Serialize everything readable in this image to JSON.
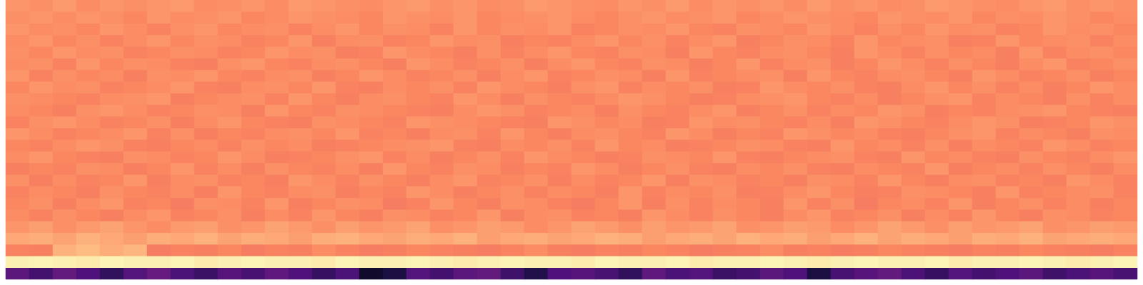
{
  "chart_data": {
    "type": "heatmap",
    "tick_labels": false,
    "zlim": [
      0,
      100
    ],
    "values": [
      [
        28,
        22,
        30,
        25,
        18,
        26,
        31,
        24,
        20,
        27,
        23,
        29,
        25,
        19,
        24,
        8,
        12,
        26,
        22,
        28,
        30,
        21,
        14,
        25,
        27,
        23,
        18,
        29,
        24,
        26,
        20,
        22,
        28,
        25,
        12,
        23,
        27,
        30,
        24,
        19,
        26,
        22,
        25,
        28,
        21,
        24,
        27,
        23
      ],
      [
        97,
        98,
        97,
        96,
        98,
        97,
        97,
        98,
        96,
        97,
        98,
        97,
        97,
        96,
        98,
        97,
        97,
        98,
        97,
        96,
        97,
        98,
        97,
        97,
        96,
        98,
        97,
        97,
        98,
        96,
        97,
        97,
        98,
        97,
        96,
        97,
        98,
        97,
        97,
        98,
        96,
        97,
        97,
        98,
        97,
        96,
        97,
        98
      ],
      [
        74,
        73,
        84,
        86,
        83,
        85,
        72,
        74,
        73,
        75,
        72,
        74,
        73,
        76,
        74,
        72,
        73,
        75,
        74,
        73,
        72,
        74,
        76,
        73,
        72,
        74,
        73,
        75,
        74,
        72,
        73,
        74,
        76,
        73,
        74,
        72,
        73,
        75,
        74,
        73,
        72,
        74,
        73,
        75,
        74,
        73,
        72,
        74
      ],
      [
        82,
        83,
        81,
        84,
        82,
        80,
        83,
        82,
        84,
        81,
        83,
        82,
        80,
        83,
        84,
        82,
        81,
        83,
        82,
        84,
        80,
        82,
        83,
        81,
        82,
        84,
        83,
        80,
        82,
        83,
        81,
        84,
        82,
        83,
        80,
        82,
        84,
        81,
        83,
        82,
        80,
        83,
        82,
        84,
        81,
        82,
        83,
        82
      ],
      [
        78,
        80,
        77,
        79,
        81,
        78,
        76,
        79,
        80,
        77,
        78,
        81,
        79,
        77,
        80,
        78,
        79,
        81,
        77,
        78,
        80,
        79,
        76,
        78,
        81,
        79,
        77,
        80,
        78,
        79,
        81,
        77,
        78,
        80,
        79,
        76,
        78,
        81,
        79,
        77,
        80,
        78,
        79,
        81,
        77,
        78,
        80,
        79
      ],
      [
        76,
        74,
        77,
        75,
        73,
        76,
        78,
        74,
        75,
        77,
        73,
        76,
        74,
        78,
        75,
        73,
        77,
        76,
        74,
        75,
        78,
        73,
        76,
        77,
        74,
        75,
        73,
        78,
        76,
        74,
        77,
        75,
        73,
        76,
        78,
        74,
        75,
        77,
        73,
        76,
        74,
        78,
        75,
        73,
        77,
        76,
        74,
        75
      ],
      [
        75,
        77,
        73,
        76,
        78,
        74,
        75,
        72,
        77,
        76,
        74,
        78,
        73,
        75,
        77,
        76,
        72,
        74,
        78,
        75,
        73,
        77,
        76,
        74,
        72,
        75,
        78,
        73,
        77,
        74,
        76,
        75,
        73,
        78,
        74,
        77,
        72,
        75,
        76,
        74,
        78,
        73,
        75,
        77,
        74,
        76,
        73,
        75
      ],
      [
        74,
        76,
        75,
        73,
        77,
        75,
        74,
        76,
        73,
        78,
        75,
        74,
        76,
        77,
        73,
        75,
        74,
        78,
        76,
        73,
        75,
        77,
        74,
        76,
        75,
        73,
        78,
        74,
        76,
        75,
        77,
        73,
        74,
        76,
        78,
        75,
        73,
        74,
        77,
        76,
        75,
        73,
        78,
        74,
        75,
        76,
        77,
        74
      ],
      [
        77,
        73,
        76,
        74,
        75,
        78,
        73,
        76,
        77,
        74,
        75,
        73,
        78,
        76,
        74,
        77,
        75,
        73,
        76,
        78,
        74,
        75,
        77,
        73,
        76,
        74,
        75,
        78,
        73,
        77,
        76,
        74,
        75,
        73,
        77,
        76,
        74,
        78,
        75,
        73,
        76,
        77,
        74,
        75,
        73,
        78,
        76,
        74
      ],
      [
        73,
        75,
        74,
        77,
        76,
        73,
        75,
        78,
        74,
        76,
        73,
        77,
        75,
        74,
        76,
        73,
        78,
        75,
        74,
        77,
        76,
        73,
        75,
        74,
        78,
        76,
        73,
        75,
        77,
        74,
        73,
        76,
        75,
        77,
        74,
        73,
        76,
        75,
        74,
        78,
        73,
        75,
        76,
        74,
        77,
        75,
        73,
        76
      ],
      [
        76,
        78,
        75,
        74,
        73,
        77,
        76,
        74,
        75,
        78,
        76,
        73,
        74,
        75,
        77,
        78,
        74,
        76,
        73,
        75,
        77,
        74,
        78,
        76,
        75,
        73,
        74,
        77,
        76,
        75,
        78,
        74,
        73,
        75,
        76,
        77,
        74,
        73,
        78,
        75,
        76,
        74,
        73,
        77,
        75,
        74,
        76,
        78
      ],
      [
        75,
        74,
        76,
        78,
        77,
        74,
        73,
        75,
        76,
        74,
        77,
        75,
        76,
        73,
        74,
        75,
        76,
        77,
        78,
        74,
        73,
        76,
        75,
        77,
        74,
        78,
        75,
        76,
        73,
        74,
        75,
        77,
        76,
        74,
        73,
        78,
        75,
        76,
        74,
        77,
        73,
        76,
        75,
        74,
        78,
        76,
        74,
        75
      ],
      [
        78,
        76,
        74,
        75,
        76,
        78,
        74,
        77,
        73,
        75,
        74,
        76,
        77,
        75,
        78,
        74,
        75,
        73,
        76,
        77,
        74,
        78,
        75,
        73,
        76,
        77,
        75,
        74,
        78,
        76,
        73,
        75,
        74,
        78,
        77,
        75,
        76,
        74,
        73,
        75,
        77,
        78,
        74,
        76,
        75,
        73,
        77,
        76
      ],
      [
        74,
        77,
        78,
        76,
        74,
        75,
        77,
        73,
        76,
        78,
        75,
        74,
        73,
        77,
        76,
        75,
        74,
        78,
        77,
        76,
        75,
        74,
        73,
        78,
        77,
        75,
        76,
        73,
        74,
        78,
        76,
        77,
        75,
        74,
        76,
        73,
        78,
        77,
        75,
        74,
        76,
        78,
        77,
        73,
        74,
        75,
        78,
        77
      ],
      [
        76,
        75,
        73,
        77,
        78,
        76,
        74,
        75,
        77,
        76,
        73,
        78,
        75,
        74,
        77,
        76,
        75,
        74,
        73,
        76,
        78,
        77,
        74,
        75,
        76,
        73,
        77,
        75,
        74,
        76,
        78,
        73,
        75,
        77,
        74,
        76,
        75,
        78,
        77,
        73,
        75,
        74,
        76,
        77,
        78,
        75,
        74,
        73
      ],
      [
        77,
        76,
        75,
        74,
        76,
        77,
        78,
        73,
        75,
        76,
        77,
        74,
        78,
        75,
        73,
        76,
        77,
        75,
        74,
        78,
        76,
        73,
        77,
        75,
        74,
        76,
        78,
        77,
        75,
        73,
        74,
        76,
        77,
        78,
        75,
        74,
        76,
        73,
        75,
        77,
        78,
        74,
        76,
        75,
        73,
        77,
        74,
        76
      ],
      [
        75,
        78,
        76,
        77,
        74,
        75,
        76,
        78,
        74,
        73,
        76,
        77,
        75,
        78,
        74,
        73,
        76,
        75,
        77,
        74,
        78,
        76,
        75,
        73,
        77,
        78,
        74,
        76,
        75,
        77,
        73,
        74,
        78,
        76,
        75,
        77,
        74,
        73,
        76,
        78,
        75,
        77,
        74,
        76,
        73,
        75,
        78,
        76
      ],
      [
        78,
        74,
        77,
        75,
        76,
        73,
        77,
        76,
        78,
        75,
        74,
        76,
        77,
        73,
        75,
        78,
        76,
        74,
        75,
        77,
        73,
        76,
        78,
        74,
        75,
        77,
        76,
        73,
        78,
        74,
        75,
        76,
        77,
        73,
        78,
        75,
        74,
        76,
        77,
        75,
        73,
        78,
        76,
        74,
        75,
        77,
        73,
        75
      ],
      [
        76,
        77,
        74,
        78,
        75,
        77,
        76,
        74,
        73,
        77,
        78,
        75,
        74,
        76,
        77,
        75,
        73,
        78,
        76,
        74,
        75,
        77,
        73,
        76,
        78,
        75,
        74,
        77,
        76,
        73,
        75,
        78,
        74,
        76,
        77,
        73,
        75,
        78,
        76,
        74,
        77,
        75,
        73,
        76,
        78,
        74,
        75,
        77
      ],
      [
        77,
        75,
        78,
        76,
        77,
        74,
        75,
        77,
        76,
        74,
        75,
        78,
        76,
        77,
        73,
        74,
        78,
        76,
        75,
        73,
        77,
        74,
        76,
        78,
        75,
        74,
        77,
        76,
        73,
        78,
        75,
        74,
        76,
        77,
        75,
        73,
        78,
        76,
        74,
        77,
        75,
        76,
        73,
        78,
        74,
        76,
        77,
        75
      ],
      [
        76,
        78,
        75,
        77,
        74,
        76,
        78,
        75,
        77,
        76,
        74,
        75,
        78,
        73,
        76,
        77,
        74,
        75,
        78,
        76,
        77,
        73,
        75,
        74,
        76,
        78,
        75,
        77,
        74,
        76,
        78,
        73,
        75,
        77,
        76,
        74,
        78,
        75,
        76,
        77,
        73,
        74,
        78,
        75,
        76,
        77,
        74,
        76
      ],
      [
        78,
        76,
        77,
        75,
        78,
        76,
        74,
        77,
        78,
        75,
        76,
        77,
        74,
        76,
        78,
        75,
        77,
        76,
        74,
        78,
        75,
        77,
        76,
        78,
        74,
        75,
        77,
        76,
        78,
        75,
        74,
        77,
        76,
        75,
        78,
        76,
        74,
        77,
        75,
        78,
        76,
        77,
        74,
        75,
        78,
        76,
        77,
        75
      ],
      [
        77,
        78,
        76,
        78,
        77,
        75,
        78,
        76,
        77,
        78,
        75,
        76,
        78,
        77,
        76,
        75,
        78,
        77,
        76,
        78,
        75,
        76,
        77,
        78,
        76,
        75,
        77,
        78,
        76,
        77,
        78,
        75,
        76,
        78,
        77,
        76,
        75,
        78,
        77,
        76,
        78,
        75,
        77,
        76,
        78,
        77,
        75,
        76
      ],
      [
        78,
        77,
        79,
        76,
        78,
        77,
        78,
        79,
        76,
        77,
        78,
        76,
        79,
        78,
        77,
        76,
        78,
        79,
        77,
        78,
        76,
        77,
        79,
        78,
        77,
        76,
        78,
        77,
        79,
        76,
        78,
        77,
        78,
        76,
        79,
        77,
        78,
        76,
        77,
        79,
        78,
        77,
        76,
        78,
        79,
        77,
        78,
        77
      ]
    ]
  }
}
